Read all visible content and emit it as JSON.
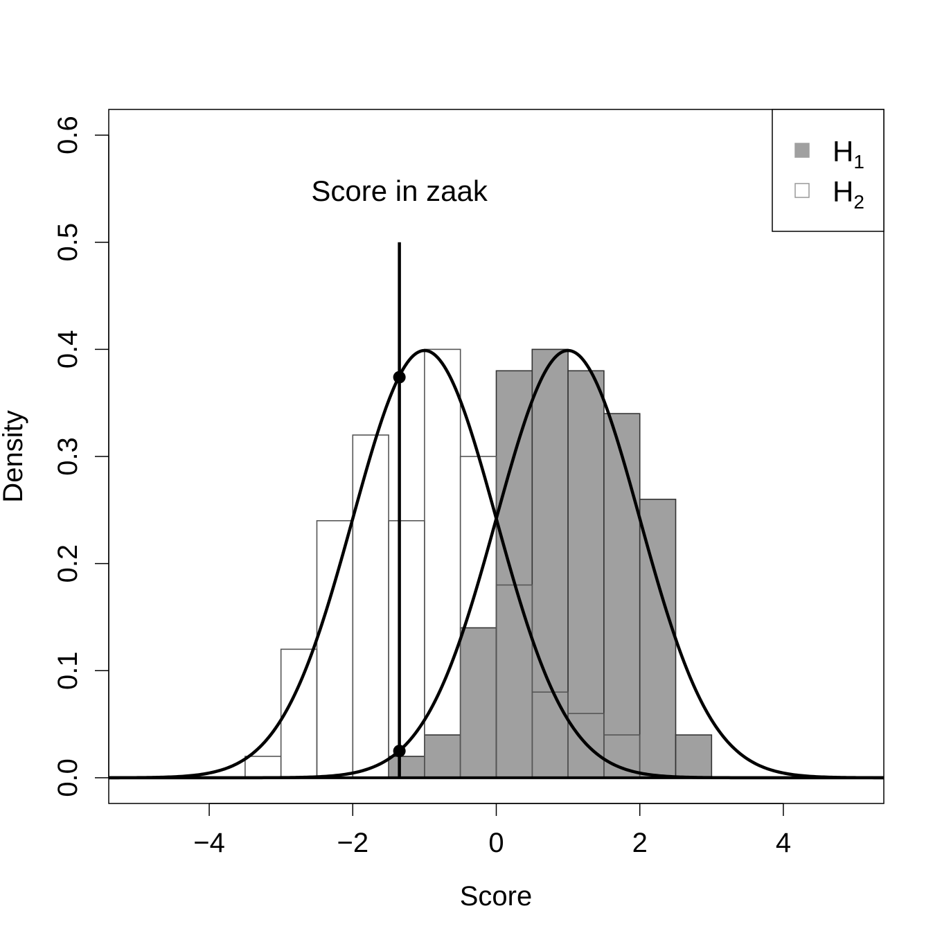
{
  "chart_data": {
    "type": "histogram",
    "xlabel": "Score",
    "ylabel": "Density",
    "xlim": [
      -5.4,
      5.4
    ],
    "ylim": [
      -0.024,
      0.624
    ],
    "x_ticks": [
      -4,
      -2,
      0,
      2,
      4
    ],
    "x_tick_labels": [
      "−4",
      "−2",
      "0",
      "2",
      "4"
    ],
    "y_ticks": [
      0.0,
      0.1,
      0.2,
      0.3,
      0.4,
      0.5,
      0.6
    ],
    "y_tick_labels": [
      "0.0",
      "0.1",
      "0.2",
      "0.3",
      "0.4",
      "0.5",
      "0.6"
    ],
    "grid": false,
    "legend_position": "top-right",
    "series": [
      {
        "name": "H1",
        "legend_main": "H",
        "legend_sub": "1",
        "color": "#a0a0a0",
        "bin_width": 0.5,
        "bins": [
          {
            "x0": -1.5,
            "density": 0.02
          },
          {
            "x0": -1.0,
            "density": 0.04
          },
          {
            "x0": -0.5,
            "density": 0.14
          },
          {
            "x0": 0.0,
            "density": 0.38
          },
          {
            "x0": 0.5,
            "density": 0.4
          },
          {
            "x0": 1.0,
            "density": 0.38
          },
          {
            "x0": 1.5,
            "density": 0.34
          },
          {
            "x0": 2.0,
            "density": 0.26
          },
          {
            "x0": 2.5,
            "density": 0.04
          }
        ],
        "curve": {
          "dist": "normal",
          "mean": 1,
          "sd": 1
        }
      },
      {
        "name": "H2",
        "legend_main": "H",
        "legend_sub": "2",
        "color": "#ffffff",
        "bin_width": 0.5,
        "bins": [
          {
            "x0": -3.5,
            "density": 0.02
          },
          {
            "x0": -3.0,
            "density": 0.12
          },
          {
            "x0": -2.5,
            "density": 0.24
          },
          {
            "x0": -2.0,
            "density": 0.32
          },
          {
            "x0": -1.5,
            "density": 0.24
          },
          {
            "x0": -1.0,
            "density": 0.4
          },
          {
            "x0": -0.5,
            "density": 0.3
          },
          {
            "x0": 0.0,
            "density": 0.18
          },
          {
            "x0": 0.5,
            "density": 0.08
          },
          {
            "x0": 1.0,
            "density": 0.06
          },
          {
            "x0": 1.5,
            "density": 0.04
          }
        ],
        "curve": {
          "dist": "normal",
          "mean": -1,
          "sd": 1
        }
      }
    ],
    "case_score": {
      "label": "Score in zaak",
      "x": -1.35,
      "line_top": 0.5,
      "points": [
        0.374,
        0.025
      ]
    }
  }
}
